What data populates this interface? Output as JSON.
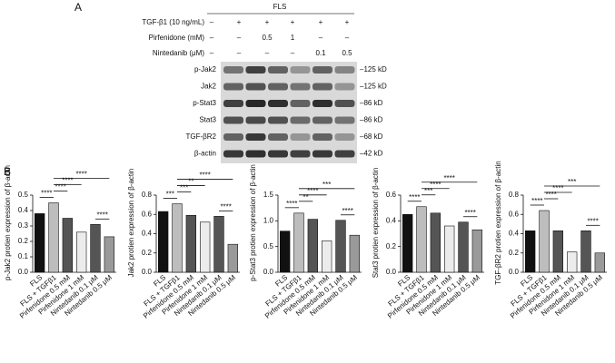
{
  "panel_labels": [
    "A",
    "B"
  ],
  "blot": {
    "header": "FLS",
    "treatments": [
      {
        "label": "TGF-β1 (10 ng/mL)",
        "entries": [
          "–",
          "+",
          "+",
          "+",
          "+",
          "+"
        ]
      },
      {
        "label": "Pirfenidone (mM)",
        "entries": [
          "–",
          "–",
          "0.5",
          "1",
          "–",
          "–"
        ]
      },
      {
        "label": "Nintedanib (μM)",
        "entries": [
          "–",
          "–",
          "–",
          "–",
          "0.1",
          "0.5"
        ]
      }
    ],
    "bands": [
      "p-Jak2",
      "Jak2",
      "p-Stat3",
      "Stat3",
      "TGF-βR2",
      "β-actin"
    ],
    "sizes": [
      "–125 kD",
      "–125 kD",
      "–86 kD",
      "–86 kD",
      "–68 kD",
      "–42 kD"
    ]
  },
  "chart_data": [
    {
      "type": "bar",
      "ylabel": "p-Jak2 protien expression of β-actin",
      "categories": [
        "FLS",
        "FLS + TGFβ1",
        "Pirfenidone 0.5 mM",
        "Pirfenidone 1 mM",
        "Nintedanib 0.1 μM",
        "Nintedanib 0.5 μM"
      ],
      "values": [
        0.38,
        0.45,
        0.35,
        0.26,
        0.31,
        0.23
      ],
      "colors": [
        "#111111",
        "#bdbdbd",
        "#555555",
        "#ececec",
        "#555555",
        "#9a9a9a"
      ],
      "ylim": [
        0,
        0.5
      ],
      "yticks": [
        {
          "value": 0,
          "label": "0.0"
        },
        0.1,
        0.2,
        0.3,
        0.4,
        0.5
      ],
      "annotations": [
        "****",
        "****",
        "****",
        "****",
        "****"
      ]
    },
    {
      "type": "bar",
      "ylabel": "Jak2 protien expression of β-actin",
      "categories": [
        "FLS",
        "FLS + TGFβ1",
        "Pirfenidone 0.5 mM",
        "Pirfenidone 1 mM",
        "Nintedanib 0.1 μM",
        "Nintedanib 0.5 μM"
      ],
      "values": [
        0.63,
        0.71,
        0.59,
        0.52,
        0.58,
        0.29
      ],
      "colors": [
        "#111111",
        "#bdbdbd",
        "#555555",
        "#ececec",
        "#555555",
        "#9a9a9a"
      ],
      "ylim": [
        0,
        0.8
      ],
      "yticks": [
        {
          "value": 0,
          "label": "0.0"
        },
        0.2,
        0.4,
        0.6,
        0.8
      ],
      "annotations": [
        "***",
        "***",
        "**",
        "****",
        "****"
      ]
    },
    {
      "type": "bar",
      "ylabel": "p-Stat3 protien expression of β-actin",
      "categories": [
        "FLS",
        "FLS + TGFβ1",
        "Pirfenidone 0.5 mM",
        "Pirfenidone 1 mM",
        "Nintedanib 0.1 μM",
        "Nintedanib 0.5 μM"
      ],
      "values": [
        0.8,
        1.15,
        1.03,
        0.61,
        1.01,
        0.72
      ],
      "colors": [
        "#111111",
        "#bdbdbd",
        "#555555",
        "#ececec",
        "#555555",
        "#9a9a9a"
      ],
      "ylim": [
        0,
        1.5
      ],
      "yticks": [
        {
          "value": 0,
          "label": "0.0"
        },
        0.5,
        {
          "value": 1,
          "label": "1.0"
        },
        1.5
      ],
      "annotations": [
        "****",
        "**",
        "****",
        "****",
        "***"
      ]
    },
    {
      "type": "bar",
      "ylabel": "Stat3 protien expression of β-actin",
      "categories": [
        "FLS",
        "FLS + TGFβ1",
        "Pirfenidone 0.5 mM",
        "Pirfenidone 1 mM",
        "Nintedanib 0.1 μM",
        "Nintedanib 0.5 μM"
      ],
      "values": [
        0.45,
        0.51,
        0.46,
        0.36,
        0.39,
        0.33
      ],
      "colors": [
        "#111111",
        "#bdbdbd",
        "#555555",
        "#ececec",
        "#555555",
        "#9a9a9a"
      ],
      "ylim": [
        0,
        0.6
      ],
      "yticks": [
        {
          "value": 0,
          "label": "0.0"
        },
        0.2,
        0.4,
        0.6
      ],
      "annotations": [
        "****",
        "***",
        "****",
        "****",
        "****"
      ]
    },
    {
      "type": "bar",
      "ylabel": "TGF-βR2 protien expression of β-actin",
      "categories": [
        "FLS",
        "FLS + TGFβ1",
        "Pirfenidone 0.5 mM",
        "Pirfenidone 1 mM",
        "Nintedanib 0.1 μM",
        "Nintedanib 0.5 μM"
      ],
      "values": [
        0.43,
        0.64,
        0.43,
        0.21,
        0.43,
        0.2
      ],
      "colors": [
        "#111111",
        "#bdbdbd",
        "#555555",
        "#ececec",
        "#555555",
        "#9a9a9a"
      ],
      "ylim": [
        0,
        0.8
      ],
      "yticks": [
        {
          "value": 0,
          "label": "0.0"
        },
        0.2,
        0.4,
        0.6,
        0.8
      ],
      "annotations": [
        "****",
        "****",
        "****",
        "****",
        "***"
      ]
    }
  ]
}
